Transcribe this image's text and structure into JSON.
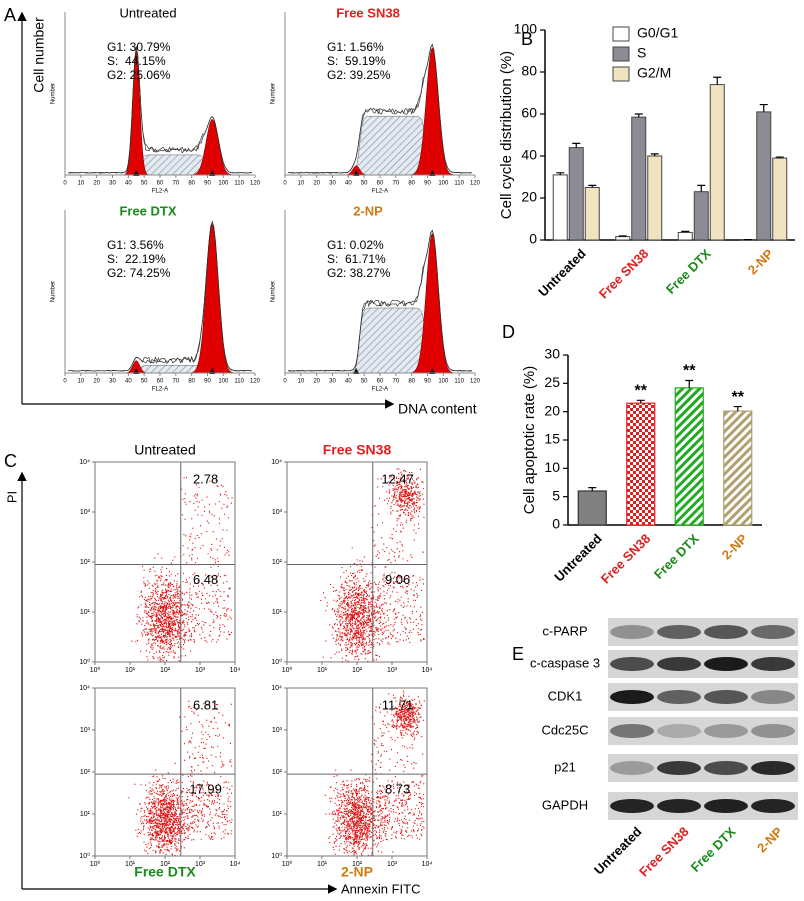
{
  "panel_a": {
    "label": "A",
    "y_axis_label": "Cell number",
    "x_axis_label": "DNA content",
    "plot_y_label": "Number",
    "plot_x_label": "FL2-A",
    "xlim": [
      0,
      120
    ],
    "xticks": [
      0,
      10,
      20,
      30,
      40,
      50,
      60,
      70,
      80,
      90,
      100,
      110,
      120
    ],
    "plots": [
      {
        "title": "Untreated",
        "title_color": "#000000",
        "stats": [
          "G1: 30.79%",
          "S:  44.15%",
          "G2: 25.06%"
        ]
      },
      {
        "title": "Free SN38",
        "title_color": "#e02020",
        "stats": [
          "G1: 1.56%",
          "S:  59.19%",
          "G2: 39.25%"
        ]
      },
      {
        "title": "Free DTX",
        "title_color": "#1a8a1a",
        "stats": [
          "G1: 3.56%",
          "S:  22.19%",
          "G2: 74.25%"
        ]
      },
      {
        "title": "2-NP",
        "title_color": "#d07a10",
        "stats": [
          "G1: 0.02%",
          "S:  61.71%",
          "G2: 38.27%"
        ]
      }
    ]
  },
  "chart_data": [
    {
      "label": "B",
      "type": "bar",
      "y_label": "Cell cycle distribution (%)",
      "categories": [
        "Untreated",
        "Free SN38",
        "Free DTX",
        "2-NP"
      ],
      "category_colors": [
        "#000000",
        "#e02020",
        "#1a8a1a",
        "#d07a10"
      ],
      "series": [
        {
          "name": "G0/G1",
          "color": "#ffffff",
          "values": [
            31,
            1.6,
            3.6,
            0.1
          ],
          "errors": [
            1,
            0.3,
            0.5,
            0.1
          ]
        },
        {
          "name": "S",
          "color": "#8c8c94",
          "values": [
            44,
            58.5,
            23,
            61
          ],
          "errors": [
            2,
            1.5,
            3,
            3.5
          ]
        },
        {
          "name": "G2/M",
          "color": "#efe3c0",
          "values": [
            25,
            40,
            74,
            39
          ],
          "errors": [
            1,
            1,
            3.5,
            0.5
          ]
        }
      ],
      "ylim": [
        0,
        100
      ],
      "yticks": [
        0,
        20,
        40,
        60,
        80,
        100
      ],
      "legend": "top-right"
    },
    {
      "label": "D",
      "type": "bar",
      "y_label": "Cell apoptotic rate (%)",
      "categories": [
        "Untreated",
        "Free SN38",
        "Free DTX",
        "2-NP"
      ],
      "category_colors": [
        "#000000",
        "#e02020",
        "#1a8a1a",
        "#d07a10"
      ],
      "values": [
        6,
        21.5,
        24.2,
        20.1
      ],
      "errors": [
        0.6,
        0.5,
        1.3,
        0.8
      ],
      "colors": [
        "#808080",
        "#e02020",
        "#22aa22",
        "#b0a070"
      ],
      "annotations": [
        {
          "category": "Free SN38",
          "text": "**"
        },
        {
          "category": "Free DTX",
          "text": "**"
        },
        {
          "category": "2-NP",
          "text": "**"
        }
      ],
      "ylim": [
        0,
        30
      ],
      "yticks": [
        0,
        5,
        10,
        15,
        20,
        25,
        30
      ]
    }
  ],
  "panel_c": {
    "label": "C",
    "y_axis_label": "PI",
    "x_axis_label": "Annexin FITC",
    "ticks": [
      {
        "value": 0,
        "label": "10⁰"
      },
      {
        "value": 1,
        "label": "10¹"
      },
      {
        "value": 2,
        "label": "10²"
      },
      {
        "value": 3,
        "label": "10³"
      },
      {
        "value": 4,
        "label": "10⁴"
      }
    ],
    "plots": [
      {
        "title": "Untreated",
        "title_color": "#000000",
        "upper_right": 2.78,
        "lower_right": 6.48
      },
      {
        "title": "Free SN38",
        "title_color": "#e02020",
        "upper_right": 12.47,
        "lower_right": 9.06
      },
      {
        "title": "Free DTX",
        "title_color": "#1a8a1a",
        "upper_right": 6.81,
        "lower_right": 17.99
      },
      {
        "title": "2-NP",
        "title_color": "#d07a10",
        "upper_right": 11.71,
        "lower_right": 8.73
      }
    ]
  },
  "panel_e": {
    "label": "E",
    "proteins": [
      "c-PARP",
      "c-caspase 3",
      "CDK1",
      "Cdc25C",
      "p21",
      "GAPDH"
    ],
    "lanes": [
      "Untreated",
      "Free SN38",
      "Free DTX",
      "2-NP"
    ],
    "lane_colors": [
      "#000000",
      "#e02020",
      "#1a8a1a",
      "#d07a10"
    ]
  }
}
